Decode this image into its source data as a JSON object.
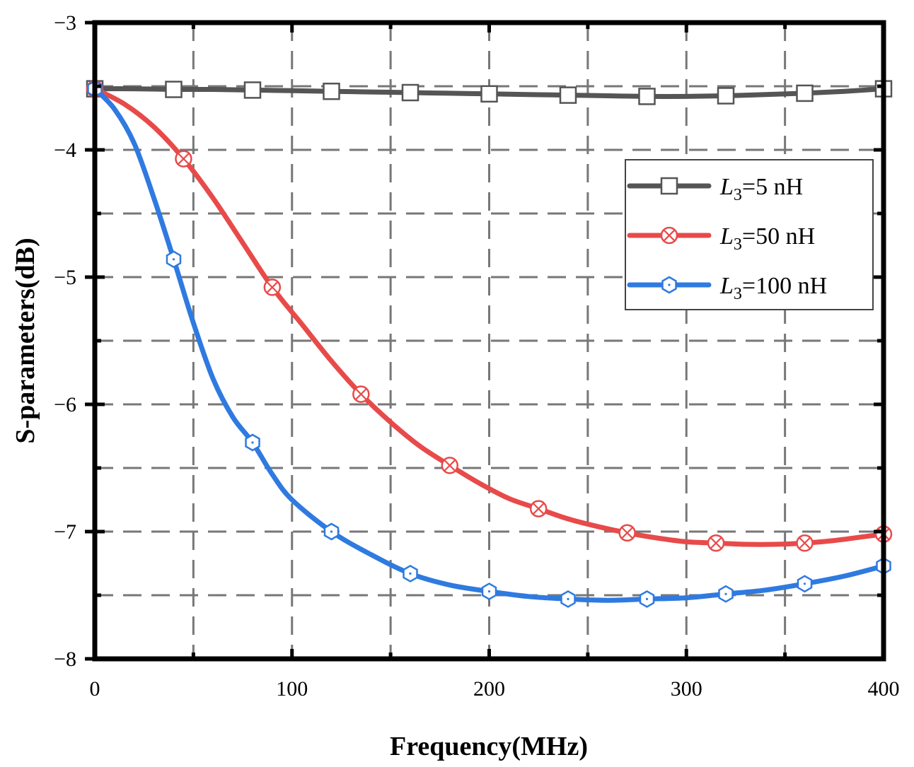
{
  "chart_data": {
    "type": "line",
    "title": "",
    "xlabel": "Frequency(MHz)",
    "ylabel": "S-parameters(dB)",
    "xlim": [
      0,
      400
    ],
    "ylim": [
      -8,
      -3
    ],
    "x_ticks": [
      0,
      100,
      200,
      300,
      400
    ],
    "x_tick_labels": [
      "0",
      "100",
      "200",
      "300",
      "400"
    ],
    "y_ticks": [
      -3,
      -4,
      -5,
      -6,
      -7,
      -8
    ],
    "y_tick_labels": [
      "−3",
      "−4",
      "−5",
      "−6",
      "−7",
      "−8"
    ],
    "grid": true,
    "grid_style": "dashed",
    "legend_position": "top-right",
    "series": [
      {
        "name": "L3=5 nH",
        "label_main": "L",
        "label_sub": "3",
        "label_rest": "=5 nH",
        "color": "#555555",
        "marker": "square",
        "x": [
          0,
          20,
          40,
          60,
          80,
          100,
          120,
          140,
          160,
          180,
          200,
          220,
          240,
          260,
          280,
          300,
          320,
          340,
          360,
          380,
          400
        ],
        "y": [
          -3.52,
          -3.52,
          -3.525,
          -3.525,
          -3.53,
          -3.535,
          -3.54,
          -3.545,
          -3.55,
          -3.555,
          -3.56,
          -3.565,
          -3.57,
          -3.575,
          -3.58,
          -3.58,
          -3.575,
          -3.565,
          -3.555,
          -3.54,
          -3.52
        ],
        "marker_x": [
          0,
          40,
          80,
          120,
          160,
          200,
          240,
          280,
          320,
          360,
          400
        ],
        "marker_y": [
          -3.52,
          -3.525,
          -3.53,
          -3.54,
          -3.55,
          -3.56,
          -3.57,
          -3.58,
          -3.575,
          -3.555,
          -3.52
        ]
      },
      {
        "name": "L3=50 nH",
        "label_main": "L",
        "label_sub": "3",
        "label_rest": "=50 nH",
        "color": "#e84a4a",
        "marker": "circle-x",
        "x": [
          0,
          15,
          30,
          45,
          60,
          75,
          90,
          105,
          120,
          135,
          150,
          165,
          180,
          195,
          210,
          225,
          240,
          255,
          270,
          285,
          300,
          315,
          330,
          345,
          360,
          375,
          390,
          400
        ],
        "y": [
          -3.52,
          -3.64,
          -3.82,
          -4.07,
          -4.38,
          -4.73,
          -5.08,
          -5.37,
          -5.66,
          -5.92,
          -6.14,
          -6.33,
          -6.48,
          -6.62,
          -6.74,
          -6.82,
          -6.9,
          -6.96,
          -7.01,
          -7.05,
          -7.08,
          -7.09,
          -7.1,
          -7.1,
          -7.09,
          -7.07,
          -7.04,
          -7.02
        ],
        "marker_x": [
          0,
          45,
          90,
          135,
          180,
          225,
          270,
          315,
          360,
          400
        ],
        "marker_y": [
          -3.52,
          -4.07,
          -5.08,
          -5.92,
          -6.48,
          -6.82,
          -7.01,
          -7.09,
          -7.09,
          -7.02
        ]
      },
      {
        "name": "L3=100 nH",
        "label_main": "L",
        "label_sub": "3",
        "label_rest": "=100 nH",
        "color": "#2f7ae0",
        "marker": "hexagon",
        "x": [
          0,
          10,
          20,
          30,
          40,
          50,
          60,
          70,
          80,
          90,
          100,
          120,
          140,
          160,
          180,
          200,
          220,
          240,
          260,
          280,
          300,
          320,
          340,
          360,
          380,
          400
        ],
        "y": [
          -3.52,
          -3.68,
          -3.95,
          -4.38,
          -4.86,
          -5.36,
          -5.8,
          -6.1,
          -6.3,
          -6.55,
          -6.75,
          -7.0,
          -7.18,
          -7.33,
          -7.42,
          -7.47,
          -7.51,
          -7.53,
          -7.54,
          -7.53,
          -7.52,
          -7.49,
          -7.46,
          -7.41,
          -7.35,
          -7.27
        ],
        "marker_x": [
          0,
          40,
          80,
          120,
          160,
          200,
          240,
          280,
          320,
          360,
          400
        ],
        "marker_y": [
          -3.52,
          -4.86,
          -6.3,
          -7.0,
          -7.33,
          -7.47,
          -7.53,
          -7.53,
          -7.49,
          -7.41,
          -7.27
        ]
      }
    ]
  }
}
